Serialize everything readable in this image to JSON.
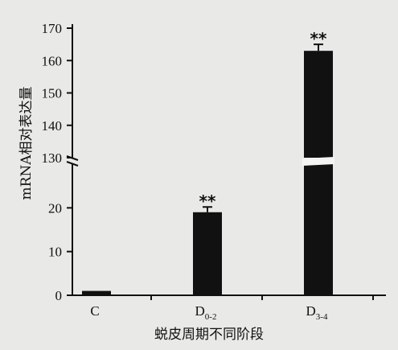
{
  "chart_data": {
    "type": "bar",
    "title": "",
    "xlabel": "蜕皮周期不同阶段",
    "ylabel": "mRNA相对表达量",
    "categories": [
      {
        "base": "C",
        "sub": ""
      },
      {
        "base": "D",
        "sub": "0-2"
      },
      {
        "base": "D",
        "sub": "3-4"
      }
    ],
    "values": [
      1,
      19,
      163
    ],
    "error": [
      0,
      1.2,
      2
    ],
    "significance": [
      "",
      "**",
      "**"
    ],
    "broken_axis": true,
    "y_lower_segment": {
      "range": [
        0,
        30
      ],
      "ticks": [
        0,
        10,
        20
      ]
    },
    "y_upper_segment": {
      "range": [
        130,
        170
      ],
      "ticks": [
        130,
        140,
        150,
        160,
        170
      ]
    },
    "grid": false,
    "bar_color": "#111111"
  }
}
